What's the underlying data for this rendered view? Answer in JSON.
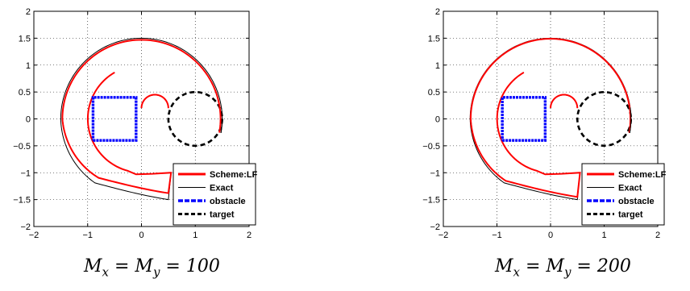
{
  "chart_data": [
    {
      "type": "line",
      "caption": "M_x = M_y = 100",
      "xlim": [
        -2,
        2
      ],
      "ylim": [
        -2,
        2
      ],
      "xticks": [
        -2,
        -1,
        0,
        1,
        2
      ],
      "yticks": [
        -2,
        -1.5,
        -1,
        -0.5,
        0,
        0.5,
        1,
        1.5,
        2
      ],
      "xtick_labels": [
        "−2",
        "−1",
        "0",
        "1",
        "2"
      ],
      "ytick_labels": [
        "−2",
        "−1.5",
        "−1",
        "−0.5",
        "0",
        "0.5",
        "1",
        "1.5",
        "2"
      ],
      "grid": true,
      "legend_position": "bottom-right",
      "legend": [
        "Scheme:LF",
        "Exact",
        "obstacle",
        "target"
      ],
      "series": [
        {
          "name": "Scheme:LF",
          "color": "#ff0000",
          "points": [
            [
              0.5,
              -1.0
            ],
            [
              0.2,
              -1.03
            ],
            [
              -0.1,
              -1.05
            ],
            [
              -0.4,
              -1.15
            ],
            [
              -0.55,
              -1.25
            ],
            [
              0.0,
              -1.38
            ],
            [
              0.55,
              -1.2
            ],
            [
              0.55,
              -1.0
            ]
          ]
        },
        {
          "name": "Exact",
          "color": "#000000",
          "points": [
            [
              0.5,
              -1.0
            ],
            [
              0.2,
              -1.03
            ],
            [
              -0.1,
              -1.05
            ],
            [
              -0.4,
              -1.15
            ],
            [
              -0.55,
              -1.25
            ],
            [
              0.0,
              -1.5
            ],
            [
              0.55,
              -1.38
            ],
            [
              0.55,
              -1.0
            ]
          ]
        },
        {
          "name": "obstacle",
          "color": "#0000ff",
          "points": [
            [
              -0.9,
              -0.4
            ],
            [
              -0.1,
              -0.4
            ],
            [
              -0.1,
              0.4
            ],
            [
              -0.9,
              0.4
            ],
            [
              -0.9,
              -0.4
            ]
          ]
        },
        {
          "name": "target",
          "color": "#000000",
          "center": [
            1.0,
            0.0
          ],
          "radius": 0.5
        }
      ]
    },
    {
      "type": "line",
      "caption": "M_x = M_y = 200",
      "xlim": [
        -2,
        2
      ],
      "ylim": [
        -2,
        2
      ],
      "xticks": [
        -2,
        -1,
        0,
        1,
        2
      ],
      "yticks": [
        -2,
        -1.5,
        -1,
        -0.5,
        0,
        0.5,
        1,
        1.5,
        2
      ],
      "xtick_labels": [
        "−2",
        "−1",
        "0",
        "1",
        "2"
      ],
      "ytick_labels": [
        "−2",
        "−1.5",
        "−1",
        "−0.5",
        "0",
        "0.5",
        "1",
        "1.5",
        "2"
      ],
      "grid": true,
      "legend_position": "bottom-right",
      "legend": [
        "Scheme:LF",
        "Exact",
        "obstacle",
        "target"
      ],
      "series": [
        {
          "name": "Scheme:LF",
          "color": "#ff0000",
          "points": [
            [
              0.5,
              -1.0
            ],
            [
              0.2,
              -1.03
            ],
            [
              -0.1,
              -1.05
            ],
            [
              -0.4,
              -1.15
            ],
            [
              -0.55,
              -1.25
            ],
            [
              0.0,
              -1.45
            ],
            [
              0.55,
              -1.3
            ],
            [
              0.55,
              -1.0
            ]
          ]
        },
        {
          "name": "Exact",
          "color": "#000000",
          "points": [
            [
              0.5,
              -1.0
            ],
            [
              0.2,
              -1.03
            ],
            [
              -0.1,
              -1.05
            ],
            [
              -0.4,
              -1.15
            ],
            [
              -0.55,
              -1.25
            ],
            [
              0.0,
              -1.5
            ],
            [
              0.55,
              -1.38
            ],
            [
              0.55,
              -1.0
            ]
          ]
        },
        {
          "name": "obstacle",
          "color": "#0000ff",
          "points": [
            [
              -0.9,
              -0.4
            ],
            [
              -0.1,
              -0.4
            ],
            [
              -0.1,
              0.4
            ],
            [
              -0.9,
              0.4
            ],
            [
              -0.9,
              -0.4
            ]
          ]
        },
        {
          "name": "target",
          "color": "#000000",
          "center": [
            1.0,
            0.0
          ],
          "radius": 0.5
        }
      ]
    }
  ]
}
